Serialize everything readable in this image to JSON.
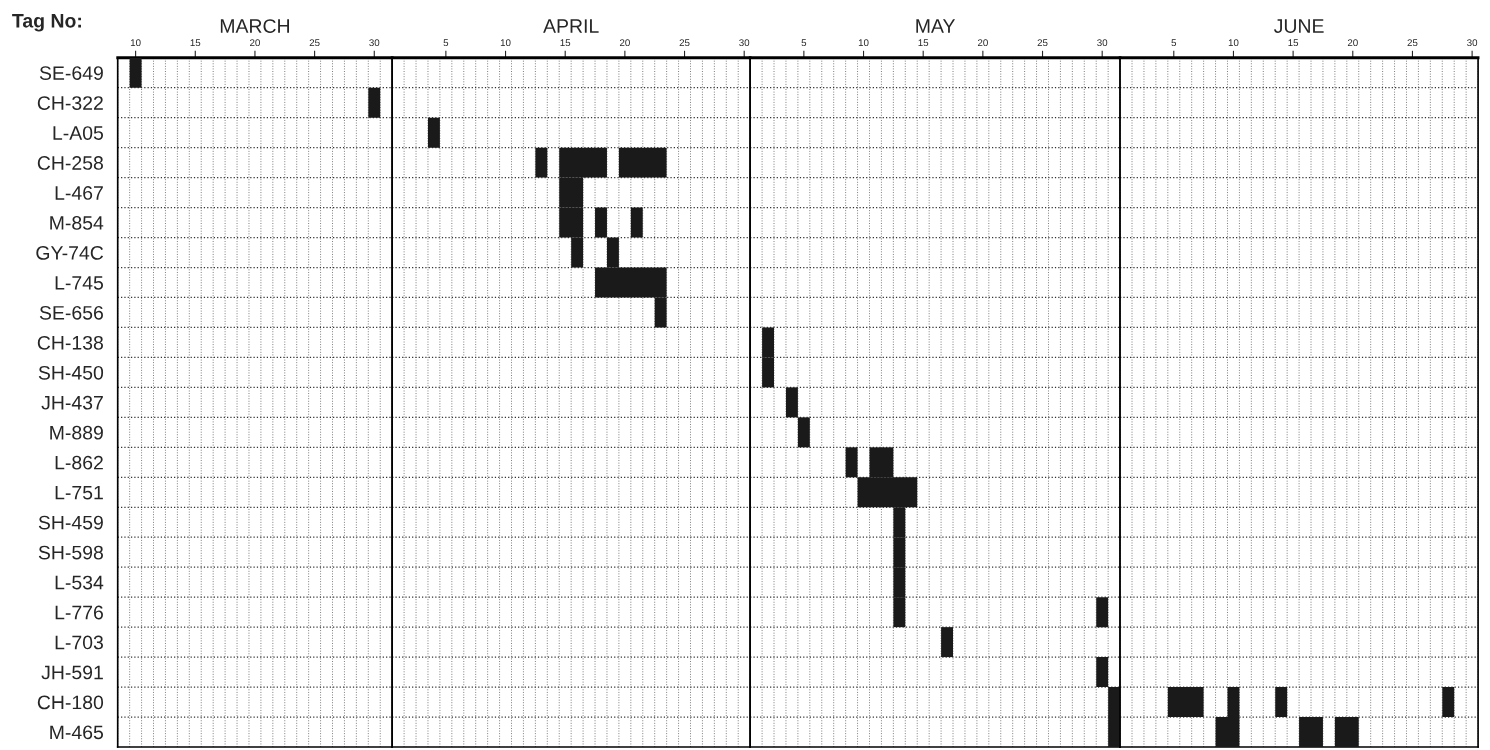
{
  "chart_data": [
    {
      "type": "bar",
      "orientation": "horizontal",
      "title": "MARCH",
      "ylabel": "Tag No:",
      "categories": [
        "SE-649",
        "CH-322",
        "L-A05",
        "CH-258",
        "L-467",
        "M-854",
        "GY-74C",
        "L-745",
        "SE-656",
        "CH-138",
        "SH-450",
        "JH-437",
        "M-889",
        "L-862",
        "L-751",
        "SH-459",
        "SH-598",
        "L-534",
        "L-776",
        "L-703",
        "JH-591",
        "CH-180",
        "M-465"
      ],
      "series": [
        {
          "color": "#1a1a1a",
          "base": [
            9.5,
            29.5,
            null,
            null,
            null,
            null,
            null,
            null,
            null,
            null,
            null,
            null,
            null,
            null,
            null,
            null,
            null,
            null,
            null,
            null,
            null,
            null,
            null
          ],
          "values": [
            1,
            1,
            null,
            null,
            null,
            null,
            null,
            null,
            null,
            null,
            null,
            null,
            null,
            null,
            null,
            null,
            null,
            null,
            null,
            null,
            null,
            null,
            null
          ]
        }
      ],
      "xlim": [
        8.5,
        31.5
      ],
      "xticks": [
        10,
        15,
        20,
        25,
        30
      ],
      "grid": true
    },
    {
      "type": "bar",
      "orientation": "horizontal",
      "title": "APRIL",
      "tick_labels": "x",
      "categories": [
        null,
        null,
        null,
        null,
        null,
        null,
        null,
        null,
        null,
        null,
        null,
        null,
        null,
        null,
        null,
        null,
        null,
        null,
        null,
        null,
        null,
        null,
        null
      ],
      "series": [
        {
          "color": "#1a1a1a",
          "base": [
            null,
            null,
            3.5,
            12.5,
            14.5,
            14.5,
            15.5,
            17.5,
            22.5,
            null,
            null,
            null,
            null,
            null,
            null,
            null,
            null,
            null,
            null,
            null,
            null,
            null,
            null
          ],
          "values": [
            null,
            null,
            1,
            1,
            2,
            2,
            1,
            6,
            1,
            null,
            null,
            null,
            null,
            null,
            null,
            null,
            null,
            null,
            null,
            null,
            null,
            null,
            null
          ]
        },
        {
          "color": "#1a1a1a",
          "base": [
            null,
            null,
            null,
            14.5,
            null,
            17.5,
            18.5,
            null,
            null,
            null,
            null,
            null,
            null,
            null,
            null,
            null,
            null,
            null,
            null,
            null,
            null,
            null,
            null
          ],
          "values": [
            null,
            null,
            null,
            4,
            null,
            1,
            1,
            null,
            null,
            null,
            null,
            null,
            null,
            null,
            null,
            null,
            null,
            null,
            null,
            null,
            null,
            null,
            null
          ]
        },
        {
          "color": "#1a1a1a",
          "base": [
            null,
            null,
            null,
            19.5,
            null,
            20.5,
            null,
            null,
            null,
            null,
            null,
            null,
            null,
            null,
            null,
            null,
            null,
            null,
            null,
            null,
            null,
            null,
            null
          ],
          "values": [
            null,
            null,
            null,
            4,
            null,
            1,
            null,
            null,
            null,
            null,
            null,
            null,
            null,
            null,
            null,
            null,
            null,
            null,
            null,
            null,
            null,
            null,
            null
          ]
        }
      ],
      "xlim": [
        0.5,
        30.5
      ],
      "xticks": [
        5,
        10,
        15,
        20,
        25,
        30
      ],
      "grid": true
    },
    {
      "type": "bar",
      "orientation": "horizontal",
      "title": "MAY",
      "tick_labels": "x",
      "categories": [
        null,
        null,
        null,
        null,
        null,
        null,
        null,
        null,
        null,
        null,
        null,
        null,
        null,
        null,
        null,
        null,
        null,
        null,
        null,
        null,
        null,
        null,
        null
      ],
      "series": [
        {
          "color": "#1a1a1a",
          "base": [
            null,
            null,
            null,
            null,
            null,
            null,
            null,
            null,
            null,
            1.5,
            1.5,
            3.5,
            4.5,
            8.5,
            9.5,
            12.5,
            12.5,
            12.5,
            12.5,
            16.5,
            29.5,
            30.5,
            30.5
          ],
          "values": [
            null,
            null,
            null,
            null,
            null,
            null,
            null,
            null,
            null,
            1,
            1,
            1,
            1,
            1,
            5,
            1,
            1,
            1,
            1,
            1,
            1,
            1,
            1
          ]
        },
        {
          "color": "#1a1a1a",
          "base": [
            null,
            null,
            null,
            null,
            null,
            null,
            null,
            null,
            null,
            null,
            null,
            null,
            null,
            10.5,
            null,
            null,
            null,
            null,
            29.5,
            null,
            null,
            null,
            null
          ],
          "values": [
            null,
            null,
            null,
            null,
            null,
            null,
            null,
            null,
            null,
            null,
            null,
            null,
            null,
            2,
            null,
            null,
            null,
            null,
            1,
            null,
            null,
            null,
            null
          ]
        }
      ],
      "xlim": [
        0.5,
        31.5
      ],
      "xticks": [
        5,
        10,
        15,
        20,
        25,
        30
      ],
      "grid": true
    },
    {
      "type": "bar",
      "orientation": "horizontal",
      "title": "JUNE",
      "tick_labels": "x",
      "categories": [
        null,
        null,
        null,
        null,
        null,
        null,
        null,
        null,
        null,
        null,
        null,
        null,
        null,
        null,
        null,
        null,
        null,
        null,
        null,
        null,
        null,
        null,
        null
      ],
      "series": [
        {
          "color": "#1a1a1a",
          "base": [
            null,
            null,
            null,
            null,
            null,
            null,
            null,
            null,
            null,
            null,
            null,
            null,
            null,
            null,
            null,
            null,
            null,
            null,
            null,
            null,
            null,
            4.5,
            8.5
          ],
          "values": [
            null,
            null,
            null,
            null,
            null,
            null,
            null,
            null,
            null,
            null,
            null,
            null,
            null,
            null,
            null,
            null,
            null,
            null,
            null,
            null,
            null,
            3,
            2
          ]
        },
        {
          "color": "#1a1a1a",
          "base": [
            null,
            null,
            null,
            null,
            null,
            null,
            null,
            null,
            null,
            null,
            null,
            null,
            null,
            null,
            null,
            null,
            null,
            null,
            null,
            null,
            null,
            9.5,
            15.5
          ],
          "values": [
            null,
            null,
            null,
            null,
            null,
            null,
            null,
            null,
            null,
            null,
            null,
            null,
            null,
            null,
            null,
            null,
            null,
            null,
            null,
            null,
            null,
            1,
            2
          ]
        },
        {
          "color": "#1a1a1a",
          "base": [
            null,
            null,
            null,
            null,
            null,
            null,
            null,
            null,
            null,
            null,
            null,
            null,
            null,
            null,
            null,
            null,
            null,
            null,
            null,
            null,
            null,
            13.5,
            18.5
          ],
          "values": [
            null,
            null,
            null,
            null,
            null,
            null,
            null,
            null,
            null,
            null,
            null,
            null,
            null,
            null,
            null,
            null,
            null,
            null,
            null,
            null,
            null,
            1,
            2
          ]
        },
        {
          "color": "#1a1a1a",
          "base": [
            null,
            null,
            null,
            null,
            null,
            null,
            null,
            null,
            null,
            null,
            null,
            null,
            null,
            null,
            null,
            null,
            null,
            null,
            null,
            null,
            null,
            27.5,
            null
          ],
          "values": [
            null,
            null,
            null,
            null,
            null,
            null,
            null,
            null,
            null,
            null,
            null,
            null,
            null,
            null,
            null,
            null,
            null,
            null,
            null,
            null,
            null,
            1,
            null
          ]
        }
      ],
      "xlim": [
        0.5,
        30.5
      ],
      "xticks": [
        5,
        10,
        15,
        20,
        25,
        30
      ],
      "grid": true
    }
  ]
}
